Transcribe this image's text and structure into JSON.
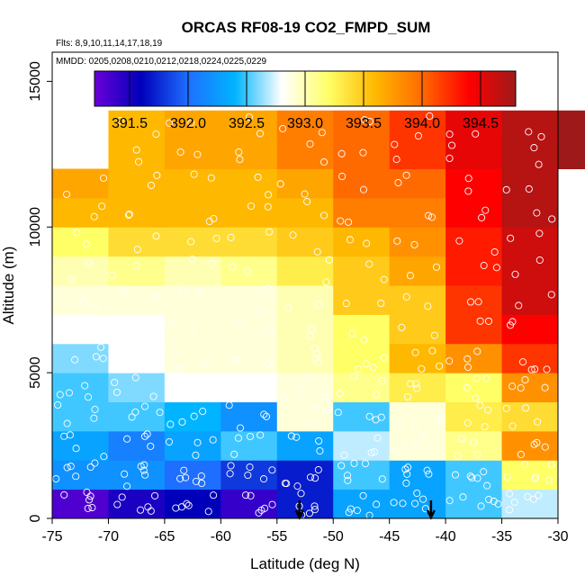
{
  "chart_data": {
    "type": "heatmap",
    "title": "ORCAS RF08-19 CO2_FMPD_SUM",
    "subtitle_flights": "Flts: 8,9,10,11,14,17,18,19",
    "subtitle_dates": "MMDD: 0205,0208,0210,0212,0218,0224,0225,0229",
    "xlabel": "Latitude (deg N)",
    "ylabel": "Altitude (m)",
    "xlim": [
      -75,
      -30
    ],
    "ylim": [
      0,
      16000
    ],
    "x_ticks": [
      -75,
      -70,
      -65,
      -60,
      -55,
      -50,
      -45,
      -40,
      -35,
      -30
    ],
    "y_ticks": [
      0,
      5000,
      10000,
      15000
    ],
    "colorbar": {
      "min": 391.2,
      "max": 394.8,
      "ticks": [
        391.5,
        392.0,
        392.5,
        393.0,
        393.5,
        394.0,
        394.5
      ],
      "tick_labels": [
        "391.5",
        "392.0",
        "392.5",
        "393.0",
        "393.5",
        "394.0",
        "394.5"
      ]
    },
    "lat_bins": [
      -75,
      -70,
      -65,
      -60,
      -55,
      -50,
      -45,
      -40,
      -35,
      -30
    ],
    "alt_bin_size": 1000,
    "grid_values": [
      [
        391.3,
        391.5,
        391.6,
        391.4,
        391.7,
        392.3,
        392.3,
        392.5,
        392.7,
        null
      ],
      [
        392.2,
        392.2,
        392.0,
        391.8,
        391.7,
        392.5,
        392.3,
        392.5,
        393.2,
        null
      ],
      [
        392.3,
        392.1,
        392.3,
        392.5,
        392.3,
        392.7,
        392.9,
        393.1,
        393.8,
        null
      ],
      [
        392.5,
        392.5,
        392.4,
        392.2,
        392.9,
        392.5,
        392.9,
        393.3,
        393.4,
        null
      ],
      [
        392.5,
        392.6,
        392.8,
        392.8,
        392.9,
        393.1,
        393.3,
        393.2,
        393.8,
        null
      ],
      [
        392.6,
        392.8,
        392.9,
        392.9,
        393.0,
        393.2,
        393.6,
        393.8,
        394.2,
        null
      ],
      [
        392.8,
        392.8,
        392.9,
        392.9,
        393.0,
        393.2,
        393.5,
        394.2,
        394.4,
        null
      ],
      [
        392.9,
        392.9,
        392.9,
        392.9,
        393.0,
        393.5,
        393.5,
        394.2,
        394.6,
        null
      ],
      [
        393.0,
        393.1,
        393.0,
        393.1,
        393.3,
        393.5,
        393.7,
        394.3,
        394.6,
        null
      ],
      [
        393.2,
        393.4,
        393.4,
        393.4,
        393.5,
        393.6,
        393.8,
        394.3,
        394.6,
        null
      ],
      [
        393.6,
        393.6,
        393.6,
        393.6,
        393.6,
        393.9,
        393.9,
        394.4,
        394.7,
        null
      ],
      [
        393.7,
        393.6,
        393.6,
        393.6,
        393.7,
        394.0,
        394.0,
        394.4,
        394.7,
        null
      ],
      [
        null,
        393.6,
        393.7,
        393.7,
        393.9,
        394.0,
        394.2,
        394.5,
        394.7,
        394.8
      ],
      [
        null,
        393.6,
        393.7,
        393.7,
        393.9,
        394.0,
        394.2,
        394.5,
        394.7,
        394.8
      ],
      [
        null,
        null,
        null,
        null,
        null,
        null,
        null,
        null,
        null,
        null
      ],
      [
        null,
        null,
        null,
        null,
        null,
        null,
        null,
        null,
        null,
        null
      ]
    ],
    "arrows_at_latitude": [
      -53,
      -41.3
    ]
  },
  "colormap_stops": [
    "#6a00d8",
    "#0000bb",
    "#1e6fff",
    "#00b4ff",
    "#ffffff",
    "#ffff66",
    "#ffb800",
    "#ff6a00",
    "#ff0000",
    "#9e1a1a"
  ],
  "marker_color": "#ffffff",
  "arrow_color": "#000000"
}
